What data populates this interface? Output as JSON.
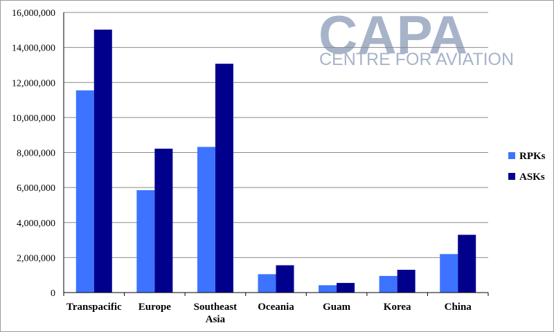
{
  "logo": {
    "main": "CAPA",
    "sub": "CENTRE FOR AVIATION"
  },
  "colors": {
    "RPKs": "#3d73ff",
    "ASKs": "#00008c",
    "grid": "#888888",
    "logo": "#a7b3c8"
  },
  "chart_data": {
    "type": "bar",
    "categories": [
      [
        "Transpacific"
      ],
      [
        "Europe"
      ],
      [
        "Southeast",
        "Asia"
      ],
      [
        "Oceania"
      ],
      [
        "Guam"
      ],
      [
        "Korea"
      ],
      [
        "China"
      ]
    ],
    "series": [
      {
        "name": "RPKs",
        "values": [
          11550000,
          5850000,
          8320000,
          1050000,
          420000,
          950000,
          2200000
        ]
      },
      {
        "name": "ASKs",
        "values": [
          15020000,
          8220000,
          13070000,
          1560000,
          550000,
          1300000,
          3300000
        ]
      }
    ],
    "ylim": [
      0,
      16000000
    ],
    "yticks": [
      0,
      2000000,
      4000000,
      6000000,
      8000000,
      10000000,
      12000000,
      14000000,
      16000000
    ],
    "ytick_labels": [
      "0",
      "2,000,000",
      "4,000,000",
      "6,000,000",
      "8,000,000",
      "10,000,000",
      "12,000,000",
      "14,000,000",
      "16,000,000"
    ],
    "grid": true,
    "legend_position": "right"
  }
}
